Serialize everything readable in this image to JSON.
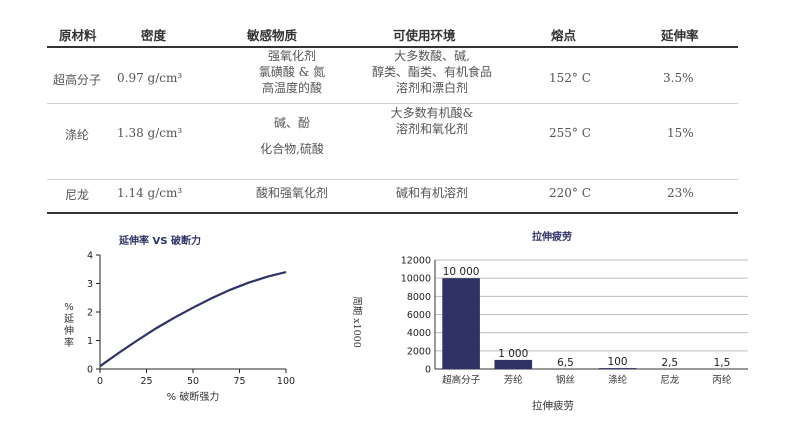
{
  "table": {
    "headers": [
      "原材料",
      "密度",
      "敏感物质",
      "可使用环境",
      "熔点",
      "延伸率"
    ],
    "rows": [
      {
        "material": "超高分子",
        "density": "0.97 g/cm³",
        "sensitive": [
          "强氧化剂",
          "氯磺酸 & 氮",
          "高温度的酸"
        ],
        "environment": [
          "大多数酸、碱,",
          "醇类、酯类、有机食品",
          "溶剂和漂白剂"
        ],
        "melting": "152° C",
        "elongation": "3.5%"
      },
      {
        "material": "涤纶",
        "density": "1.38 g/cm³",
        "sensitive": [
          "碱、酚",
          "化合物,硫酸"
        ],
        "environment": [
          "大多数有机酸&",
          "溶剂和氧化剂"
        ],
        "melting": "255° C",
        "elongation": "15%"
      },
      {
        "material": "尼龙",
        "density": "1.14 g/cm³",
        "sensitive": [
          "酸和强氧化剂"
        ],
        "environment": [
          "碱和有机溶剂"
        ],
        "melting": "220° C",
        "elongation": "23%"
      }
    ]
  },
  "chart_data": [
    {
      "type": "line",
      "title": "延伸率 VS 破断力",
      "xlabel": "% 破断强力",
      "ylabel": "% 延伸率",
      "xlim": [
        0,
        100
      ],
      "ylim": [
        0,
        4
      ],
      "xticks": [
        "0",
        "25",
        "50",
        "75",
        "100"
      ],
      "yticks": [
        "0",
        "1",
        "2",
        "3",
        "4"
      ],
      "grid": false,
      "series": [
        {
          "x": [
            0,
            10,
            20,
            30,
            40,
            50,
            60,
            70,
            80,
            90,
            100
          ],
          "y": [
            0.1,
            0.56,
            1.0,
            1.42,
            1.8,
            2.15,
            2.48,
            2.78,
            3.03,
            3.24,
            3.4
          ]
        }
      ],
      "color": "#2e3266"
    },
    {
      "type": "bar",
      "title": "拉伸疲劳",
      "xlabel": "拉伸疲劳",
      "ylabel": "周期 x1000",
      "ylim": [
        0,
        12000
      ],
      "yticks": [
        "0",
        "2000",
        "4000",
        "6000",
        "8000",
        "10000",
        "12000"
      ],
      "grid": true,
      "categories": [
        "超高分子",
        "芳纶",
        "钢丝",
        "涤纶",
        "尼龙",
        "丙纶"
      ],
      "values": [
        10000,
        1000,
        6.5,
        100,
        2.5,
        1.5
      ],
      "data_labels": [
        "10 000",
        "1 000",
        "6,5",
        "100",
        "2,5",
        "1,5"
      ],
      "color": "#2e3266"
    }
  ]
}
